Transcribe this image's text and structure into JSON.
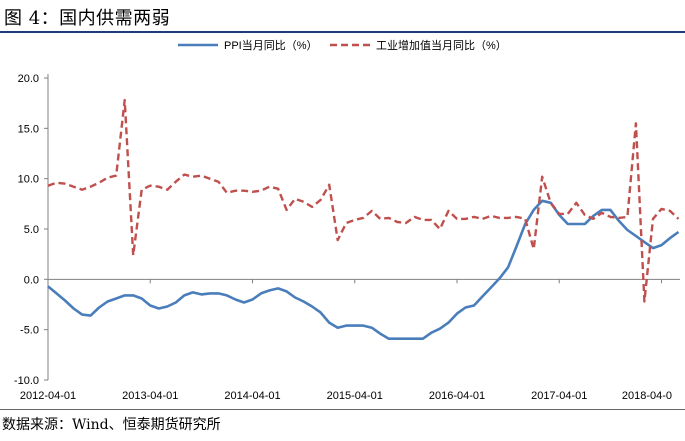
{
  "figure_title": "图 4：国内供需两弱",
  "source": "数据来源：Wind、恒泰期货研究所",
  "chart_data": {
    "type": "line",
    "title": "",
    "xlabel": "",
    "ylabel": "",
    "ylim": [
      -10,
      20
    ],
    "y_ticks": [
      "-10.0",
      "-5.0",
      "0.0",
      "5.0",
      "10.0",
      "15.0",
      "20.0"
    ],
    "x_ticks": [
      "2012-04-01",
      "2013-04-01",
      "2014-04-01",
      "2015-04-01",
      "2016-04-01",
      "2017-04-01",
      "2018-04-0"
    ],
    "x_range": [
      "2012-04",
      "2018-05"
    ],
    "legend_position": "top",
    "grid": false,
    "series": [
      {
        "name": "PPI当月同比（%）",
        "color": "#4a7ebb",
        "style": "solid",
        "points": [
          [
            "2012-04",
            -0.7
          ],
          [
            "2012-05",
            -1.4
          ],
          [
            "2012-06",
            -2.1
          ],
          [
            "2012-07",
            -2.9
          ],
          [
            "2012-08",
            -3.5
          ],
          [
            "2012-09",
            -3.6
          ],
          [
            "2012-10",
            -2.8
          ],
          [
            "2012-11",
            -2.2
          ],
          [
            "2012-12",
            -1.9
          ],
          [
            "2013-01",
            -1.6
          ],
          [
            "2013-02",
            -1.6
          ],
          [
            "2013-03",
            -1.9
          ],
          [
            "2013-04",
            -2.6
          ],
          [
            "2013-05",
            -2.9
          ],
          [
            "2013-06",
            -2.7
          ],
          [
            "2013-07",
            -2.3
          ],
          [
            "2013-08",
            -1.6
          ],
          [
            "2013-09",
            -1.3
          ],
          [
            "2013-10",
            -1.5
          ],
          [
            "2013-11",
            -1.4
          ],
          [
            "2013-12",
            -1.4
          ],
          [
            "2014-01",
            -1.6
          ],
          [
            "2014-02",
            -2.0
          ],
          [
            "2014-03",
            -2.3
          ],
          [
            "2014-04",
            -2.0
          ],
          [
            "2014-05",
            -1.4
          ],
          [
            "2014-06",
            -1.1
          ],
          [
            "2014-07",
            -0.9
          ],
          [
            "2014-08",
            -1.2
          ],
          [
            "2014-09",
            -1.8
          ],
          [
            "2014-10",
            -2.2
          ],
          [
            "2014-11",
            -2.7
          ],
          [
            "2014-12",
            -3.3
          ],
          [
            "2015-01",
            -4.3
          ],
          [
            "2015-02",
            -4.8
          ],
          [
            "2015-03",
            -4.6
          ],
          [
            "2015-04",
            -4.6
          ],
          [
            "2015-05",
            -4.6
          ],
          [
            "2015-06",
            -4.8
          ],
          [
            "2015-07",
            -5.4
          ],
          [
            "2015-08",
            -5.9
          ],
          [
            "2015-09",
            -5.9
          ],
          [
            "2015-10",
            -5.9
          ],
          [
            "2015-11",
            -5.9
          ],
          [
            "2015-12",
            -5.9
          ],
          [
            "2016-01",
            -5.3
          ],
          [
            "2016-02",
            -4.9
          ],
          [
            "2016-03",
            -4.3
          ],
          [
            "2016-04",
            -3.4
          ],
          [
            "2016-05",
            -2.8
          ],
          [
            "2016-06",
            -2.6
          ],
          [
            "2016-07",
            -1.7
          ],
          [
            "2016-08",
            -0.8
          ],
          [
            "2016-09",
            0.1
          ],
          [
            "2016-10",
            1.2
          ],
          [
            "2016-11",
            3.3
          ],
          [
            "2016-12",
            5.5
          ],
          [
            "2017-01",
            6.9
          ],
          [
            "2017-02",
            7.8
          ],
          [
            "2017-03",
            7.6
          ],
          [
            "2017-04",
            6.4
          ],
          [
            "2017-05",
            5.5
          ],
          [
            "2017-06",
            5.5
          ],
          [
            "2017-07",
            5.5
          ],
          [
            "2017-08",
            6.3
          ],
          [
            "2017-09",
            6.9
          ],
          [
            "2017-10",
            6.9
          ],
          [
            "2017-11",
            5.8
          ],
          [
            "2017-12",
            4.9
          ],
          [
            "2018-01",
            4.3
          ],
          [
            "2018-02",
            3.7
          ],
          [
            "2018-03",
            3.1
          ],
          [
            "2018-04",
            3.4
          ],
          [
            "2018-05",
            4.1
          ],
          [
            "2018-06",
            4.7
          ]
        ]
      },
      {
        "name": "工业增加值当月同比（%）",
        "color": "#c0504d",
        "style": "dashed",
        "points": [
          [
            "2012-04",
            9.3
          ],
          [
            "2012-05",
            9.6
          ],
          [
            "2012-06",
            9.5
          ],
          [
            "2012-07",
            9.2
          ],
          [
            "2012-08",
            8.9
          ],
          [
            "2012-09",
            9.2
          ],
          [
            "2012-10",
            9.6
          ],
          [
            "2012-11",
            10.1
          ],
          [
            "2012-12",
            10.3
          ],
          [
            "2013-01",
            17.8
          ],
          [
            "2013-02",
            2.4
          ],
          [
            "2013-03",
            8.9
          ],
          [
            "2013-04",
            9.3
          ],
          [
            "2013-05",
            9.2
          ],
          [
            "2013-06",
            8.9
          ],
          [
            "2013-07",
            9.7
          ],
          [
            "2013-08",
            10.4
          ],
          [
            "2013-09",
            10.2
          ],
          [
            "2013-10",
            10.3
          ],
          [
            "2013-11",
            10.0
          ],
          [
            "2013-12",
            9.7
          ],
          [
            "2014-01",
            8.6
          ],
          [
            "2014-02",
            8.8
          ],
          [
            "2014-03",
            8.8
          ],
          [
            "2014-04",
            8.7
          ],
          [
            "2014-05",
            8.8
          ],
          [
            "2014-06",
            9.2
          ],
          [
            "2014-07",
            9.0
          ],
          [
            "2014-08",
            6.9
          ],
          [
            "2014-09",
            8.0
          ],
          [
            "2014-10",
            7.7
          ],
          [
            "2014-11",
            7.2
          ],
          [
            "2014-12",
            7.9
          ],
          [
            "2015-01",
            9.4
          ],
          [
            "2015-02",
            3.9
          ],
          [
            "2015-03",
            5.6
          ],
          [
            "2015-04",
            5.9
          ],
          [
            "2015-05",
            6.1
          ],
          [
            "2015-06",
            6.8
          ],
          [
            "2015-07",
            6.0
          ],
          [
            "2015-08",
            6.1
          ],
          [
            "2015-09",
            5.7
          ],
          [
            "2015-10",
            5.6
          ],
          [
            "2015-11",
            6.2
          ],
          [
            "2015-12",
            5.9
          ],
          [
            "2016-01",
            5.9
          ],
          [
            "2016-02",
            5.0
          ],
          [
            "2016-03",
            6.8
          ],
          [
            "2016-04",
            6.0
          ],
          [
            "2016-05",
            6.0
          ],
          [
            "2016-06",
            6.2
          ],
          [
            "2016-07",
            6.0
          ],
          [
            "2016-08",
            6.3
          ],
          [
            "2016-09",
            6.1
          ],
          [
            "2016-10",
            6.1
          ],
          [
            "2016-11",
            6.2
          ],
          [
            "2016-12",
            6.0
          ],
          [
            "2017-01",
            3.0
          ],
          [
            "2017-02",
            10.2
          ],
          [
            "2017-03",
            7.6
          ],
          [
            "2017-04",
            6.5
          ],
          [
            "2017-05",
            6.5
          ],
          [
            "2017-06",
            7.6
          ],
          [
            "2017-07",
            6.4
          ],
          [
            "2017-08",
            6.0
          ],
          [
            "2017-09",
            6.6
          ],
          [
            "2017-10",
            6.2
          ],
          [
            "2017-11",
            6.1
          ],
          [
            "2017-12",
            6.2
          ],
          [
            "2018-01",
            15.5
          ],
          [
            "2018-02",
            -2.2
          ],
          [
            "2018-03",
            6.0
          ],
          [
            "2018-04",
            7.0
          ],
          [
            "2018-05",
            6.8
          ],
          [
            "2018-06",
            6.0
          ]
        ]
      }
    ]
  }
}
